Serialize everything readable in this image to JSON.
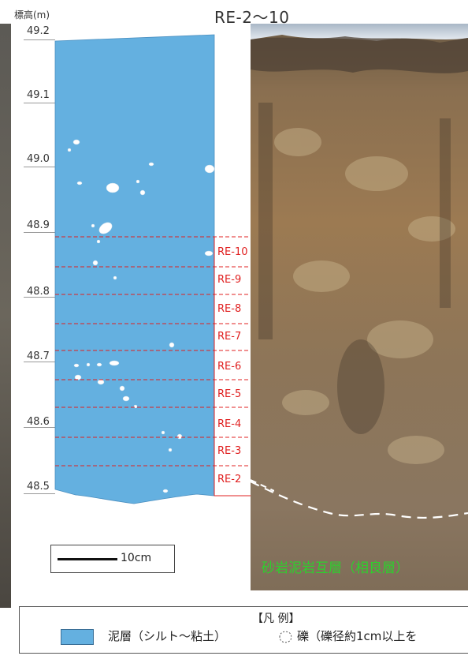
{
  "title": "RE-2〜10",
  "axis_label": "標高(m)",
  "elevation_ticks": [
    "49.2",
    "49.1",
    "49.0",
    "48.9",
    "48.8",
    "48.7",
    "48.6",
    "48.5"
  ],
  "sample_labels": [
    "RE-10",
    "RE-9",
    "RE-8",
    "RE-7",
    "RE-6",
    "RE-5",
    "RE-4",
    "RE-3",
    "RE-2"
  ],
  "scale_bar_label": "10cm",
  "formation_label": "砂岩泥岩互層（相良層）",
  "legend": {
    "title": "【凡 例】",
    "mud_layer": "泥層（シルト〜粘土）",
    "gravel": "礫（礫径約1cm以上を"
  },
  "colors": {
    "mud_layer": "#64b0e0",
    "sample_lines": "#e02020",
    "formation_text": "#2dd02d"
  }
}
